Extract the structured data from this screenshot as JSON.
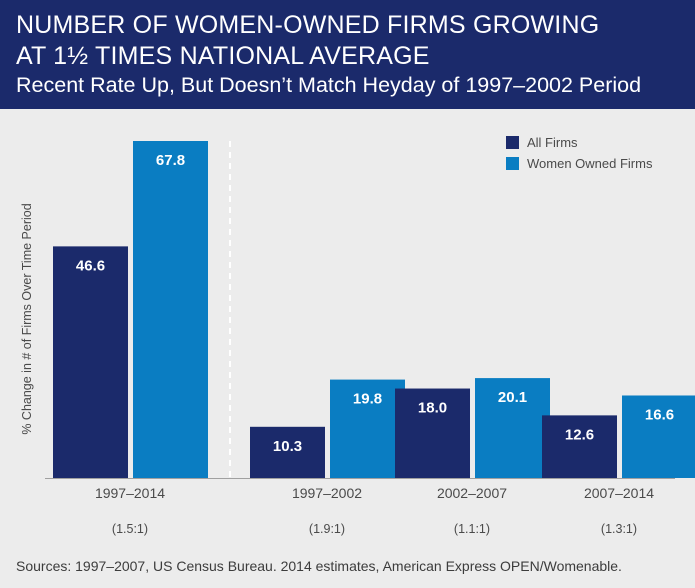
{
  "header": {
    "title_line1": "NUMBER OF WOMEN-OWNED FIRMS GROWING",
    "title_line2": "AT 1½ TIMES NATIONAL AVERAGE",
    "subtitle": "Recent Rate Up, But Doesn’t Match Heyday of 1997–2002 Period"
  },
  "colors": {
    "header_bg": "#1b2a6b",
    "all_firms": "#1b2a6b",
    "women_owned": "#0a7dc2",
    "background": "#ececec"
  },
  "chart_data": {
    "type": "bar",
    "title": "NUMBER OF WOMEN-OWNED FIRMS GROWING AT 1½ TIMES NATIONAL AVERAGE",
    "subtitle": "Recent Rate Up, But Doesn’t Match Heyday of 1997–2002 Period",
    "ylabel": "% Change in # of Firms Over Time Period",
    "categories": [
      "1997–2014",
      "1997–2002",
      "2002–2007",
      "2007–2014"
    ],
    "ratios": [
      "(1.5:1)",
      "(1.9:1)",
      "(1.1:1)",
      "(1.3:1)"
    ],
    "series": [
      {
        "name": "All Firms",
        "values": [
          46.6,
          10.3,
          18.0,
          12.6
        ],
        "labels": [
          "46.6",
          "10.3",
          "18.0",
          "12.6"
        ],
        "color": "#1b2a6b"
      },
      {
        "name": "Women Owned Firms",
        "values": [
          67.8,
          19.8,
          20.1,
          16.6
        ],
        "labels": [
          "67.8",
          "19.8",
          "20.1",
          "16.6"
        ],
        "color": "#0a7dc2"
      }
    ],
    "ylim": [
      0,
      67.8
    ],
    "legend": "top-right",
    "grid": false
  },
  "source": "Sources: 1997–2007, US Census Bureau. 2014 estimates, American Express OPEN/Womenable."
}
